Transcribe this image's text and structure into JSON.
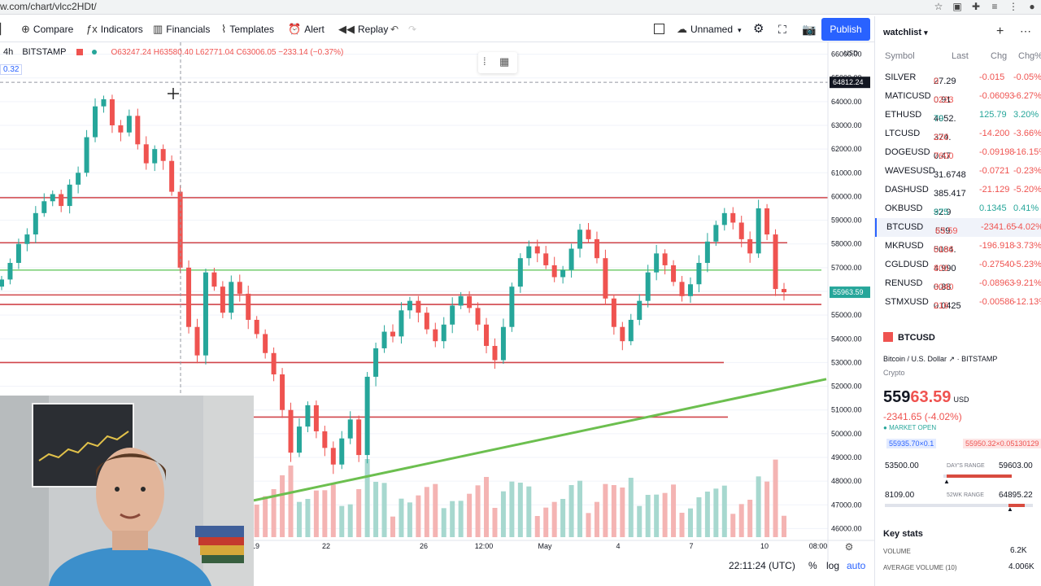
{
  "browser": {
    "url": "w.com/chart/vlcc2HDt/",
    "icons": [
      "star-icon",
      "extension-icon",
      "puzzle-icon",
      "playlist-icon",
      "menu-icon",
      "profile-icon"
    ]
  },
  "toolbar": {
    "compare": "Compare",
    "indicators": "Indicators",
    "financials": "Financials",
    "templates": "Templates",
    "alert": "Alert",
    "replay": "Replay",
    "layout_name": "Unnamed",
    "publish": "Publish"
  },
  "legend": {
    "timeframe": "4h",
    "symbol": "BITSTAMP",
    "ohlc": "O63247.24 H63580.40 L62771.04 C63006.05 −233.14 (−0.37%)",
    "sub_value": "0.32"
  },
  "chart_data": {
    "type": "candlestick",
    "symbol": "BTCUSD",
    "currency": "USD",
    "ylim": [
      45500,
      66500
    ],
    "y_ticks": [
      "66000.00",
      "65000.00",
      "64000.00",
      "63000.00",
      "62000.00",
      "61000.00",
      "60000.00",
      "59000.00",
      "58000.00",
      "57000.00",
      "56000.00",
      "55000.00",
      "54000.00",
      "53000.00",
      "52000.00",
      "51000.00",
      "50000.00",
      "49000.00",
      "48000.00",
      "47000.00",
      "46000.00"
    ],
    "x_ticks": [
      "19",
      "22",
      "26",
      "12:00",
      "May",
      "4",
      "7",
      "10",
      "08:00"
    ],
    "crosshair_price": "64812.24",
    "last_price_label": "55963.59",
    "horizontal_lines": [
      59950,
      58050,
      56900,
      55850,
      55450,
      53000,
      50700
    ],
    "trendline": [
      [
        0,
        46500
      ],
      [
        1,
        52300
      ]
    ],
    "candles_close": [
      56500,
      57200,
      58000,
      58400,
      59300,
      59800,
      60100,
      59600,
      60500,
      61000,
      62500,
      63800,
      64100,
      63000,
      62700,
      63400,
      62200,
      61400,
      62000,
      61500,
      60200,
      57000,
      54500,
      53300,
      56800,
      56200,
      55100,
      56400,
      55900,
      54800,
      54200,
      53400,
      52500,
      51000,
      49200,
      50300,
      51200,
      50100,
      49400,
      48700,
      49800,
      50600,
      49100,
      52400,
      53600,
      54300,
      54100,
      55200,
      55600,
      55100,
      54400,
      53900,
      54600,
      55400,
      55800,
      55300,
      54600,
      53700,
      53100,
      54500,
      56200,
      57400,
      57900,
      57600,
      57100,
      56600,
      56900,
      57800,
      58600,
      58200,
      57400,
      55700,
      54500,
      53900,
      54800,
      55600,
      56800,
      57600,
      57100,
      56400,
      55800,
      56300,
      57200,
      58100,
      58800,
      59300,
      58900,
      58200,
      57600,
      59500,
      58400,
      56100,
      55963
    ]
  },
  "bottom": {
    "time": "22:11:24 (UTC)",
    "percent": "%",
    "log": "log",
    "auto": "auto"
  },
  "watchlist": {
    "title": "watchlist",
    "cols": [
      "Symbol",
      "Last",
      "Chg",
      "Chg%"
    ],
    "rows": [
      {
        "symbol": "SILVER",
        "last": "27.29",
        "last_suffix": "0",
        "chg": "-0.015",
        "pct": "-0.05%",
        "dir": "neg"
      },
      {
        "symbol": "MATICUSD",
        "last": "0.91",
        "last_suffix": "0223",
        "chg": "-0.06093",
        "pct": "-6.27%",
        "dir": "neg"
      },
      {
        "symbol": "ETHUSD",
        "last": "4052.",
        "last_suffix": "79",
        "chg": "125.79",
        "pct": "3.20%",
        "dir": "pos"
      },
      {
        "symbol": "LTCUSD",
        "last": "374.",
        "last_suffix": "220",
        "chg": "-14.200",
        "pct": "-3.66%",
        "dir": "neg"
      },
      {
        "symbol": "DOGEUSD",
        "last": "0.47",
        "last_suffix": "7600",
        "chg": "-0.09198",
        "pct": "-16.15%",
        "dir": "neg"
      },
      {
        "symbol": "WAVESUSD",
        "last": "31.6748",
        "last_suffix": "",
        "chg": "-0.0721",
        "pct": "-0.23%",
        "dir": "neg"
      },
      {
        "symbol": "DASHUSD",
        "last": "385.417",
        "last_suffix": "",
        "chg": "-21.129",
        "pct": "-5.20%",
        "dir": "neg"
      },
      {
        "symbol": "OKBUSD",
        "last": "32.9",
        "last_suffix": "975",
        "chg": "0.1345",
        "pct": "0.41%",
        "dir": "pos"
      },
      {
        "symbol": "BTCUSD",
        "last": "559",
        "last_suffix": "63.59",
        "chg": "-2341.65",
        "pct": "-4.02%",
        "dir": "neg"
      },
      {
        "symbol": "MKRUSD",
        "last": "5084.",
        "last_suffix": "0166",
        "chg": "-196.918",
        "pct": "-3.73%",
        "dir": "neg"
      },
      {
        "symbol": "CGLDUSD",
        "last": "4.990",
        "last_suffix": "800",
        "chg": "-0.27540",
        "pct": "-5.23%",
        "dir": "neg"
      },
      {
        "symbol": "RENUSD",
        "last": "0.88",
        "last_suffix": "3040",
        "chg": "-0.08963",
        "pct": "-9.21%",
        "dir": "neg"
      },
      {
        "symbol": "STMXUSD",
        "last": "0.0425",
        "last_suffix": "216",
        "chg": "-0.00586",
        "pct": "-12.13%",
        "dir": "neg"
      }
    ]
  },
  "detail": {
    "symbol": "BTCUSD",
    "name": "Bitcoin / U.S. Dollar",
    "exchange": "BITSTAMP",
    "type": "Crypto",
    "price_main": "559",
    "price_tail": "63.59",
    "currency": "USD",
    "change": "-2341.65 (-4.02%)",
    "market": "MARKET OPEN",
    "bid": "55935.70",
    "bid_suffix": "×0.1",
    "ask": "55950.32",
    "ask_suffix": "×0.05130129",
    "day_low": "53500.00",
    "day_range_label": "DAY'S RANGE",
    "day_high": "59603.00",
    "wk_low": "8109.00",
    "wk_range_label": "52WK RANGE",
    "wk_high": "64895.22",
    "key_stats": "Key stats",
    "volume_label": "VOLUME",
    "volume": "6.2K",
    "avg_volume_label": "AVERAGE VOLUME (10)",
    "avg_volume": "4.006K"
  }
}
